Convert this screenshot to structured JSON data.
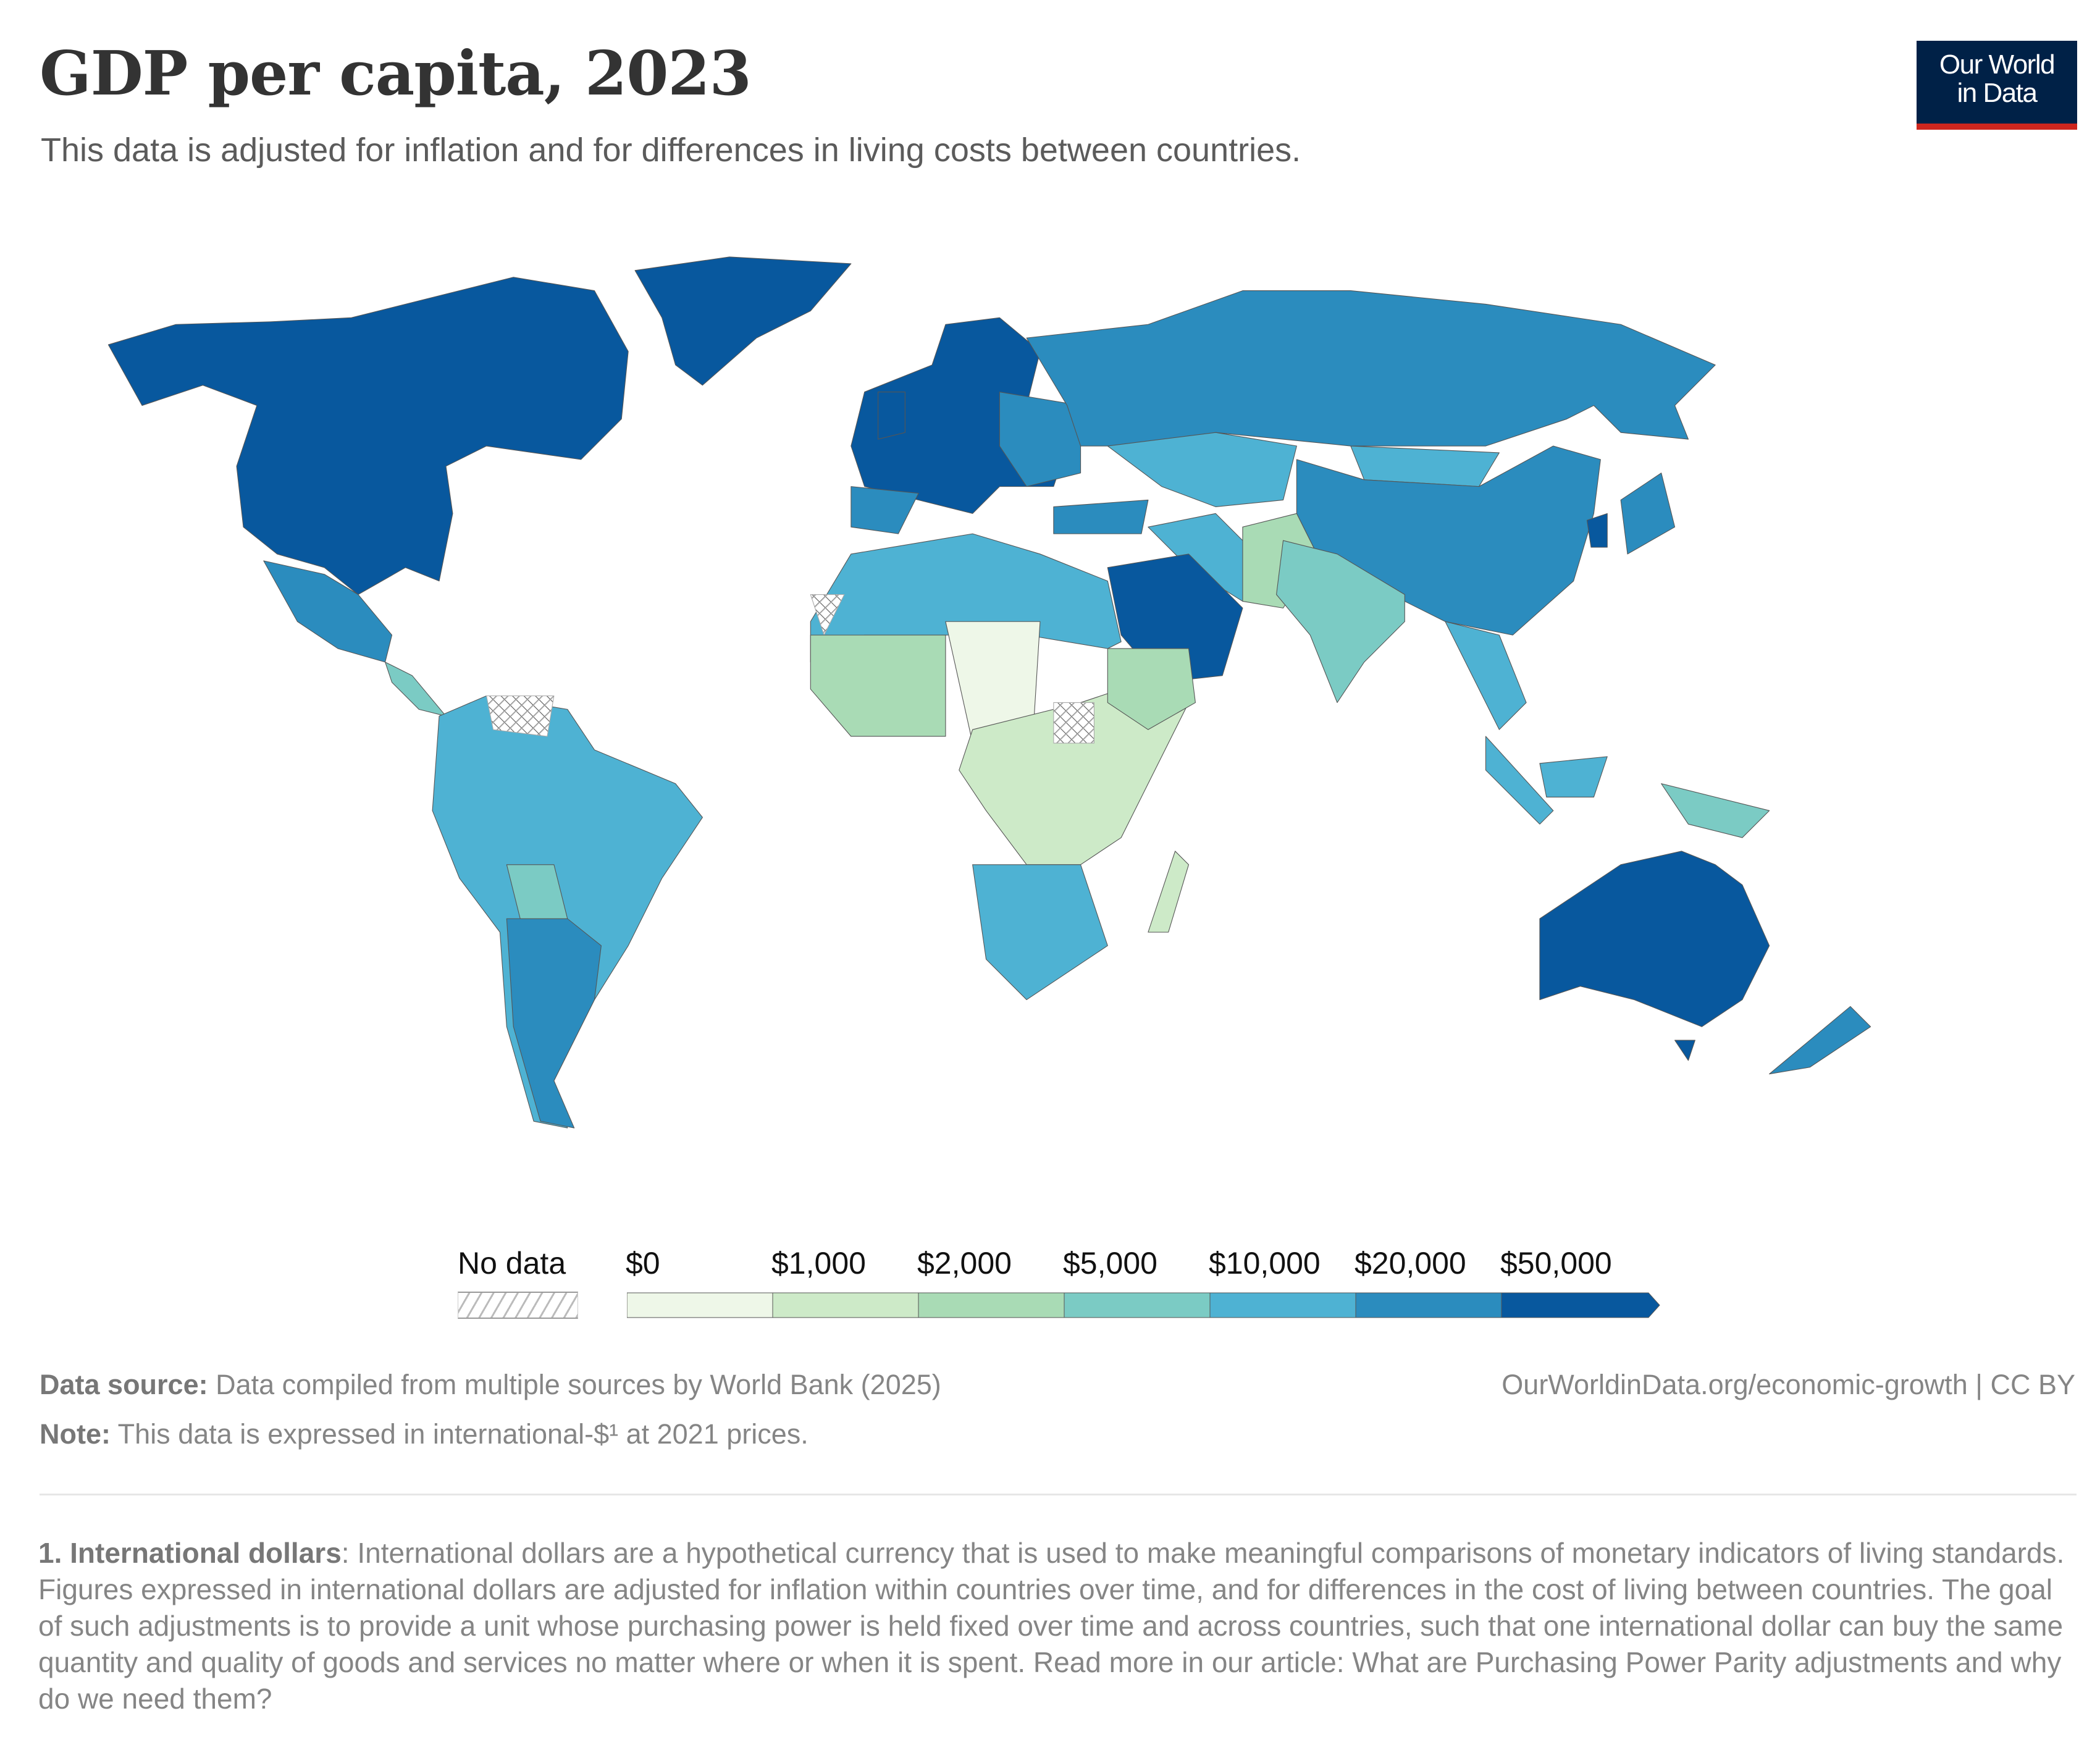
{
  "header": {
    "title": "GDP per capita, 2023",
    "subtitle": "This data is adjusted for inflation and for differences in living costs between countries.",
    "logo_line1": "Our World",
    "logo_line2": "in Data"
  },
  "legend": {
    "no_data_label": "No data",
    "bins": [
      {
        "label": "$0",
        "color": "#eef7e8"
      },
      {
        "label": "$1,000",
        "color": "#cdeac8"
      },
      {
        "label": "$2,000",
        "color": "#a9dbb5"
      },
      {
        "label": "$5,000",
        "color": "#7bcbc4"
      },
      {
        "label": "$10,000",
        "color": "#4eb2d3"
      },
      {
        "label": "$20,000",
        "color": "#2b8cbe"
      },
      {
        "label": "$50,000",
        "color": "#08589e"
      }
    ]
  },
  "footer": {
    "source_label": "Data source:",
    "source_text": " Data compiled from multiple sources by World Bank (2025)",
    "url": "OurWorldinData.org/economic-growth | CC BY",
    "note_label": "Note:",
    "note_text": " This data is expressed in international-$¹ at 2021 prices.",
    "footnote_label": "1. International dollars",
    "footnote_text": ": International dollars are a hypothetical currency that is used to make meaningful comparisons of monetary indicators of living standards. Figures expressed in international dollars are adjusted for inflation within countries over time, and for differences in the cost of living between countries. The goal of such adjustments is to provide a unit whose purchasing power is held fixed over time and across countries, such that one international dollar can buy the same quantity and quality of goods and services no matter where or when it is spent. Read more in our article: What are Purchasing Power Parity adjustments and why do we need them?"
  }
}
